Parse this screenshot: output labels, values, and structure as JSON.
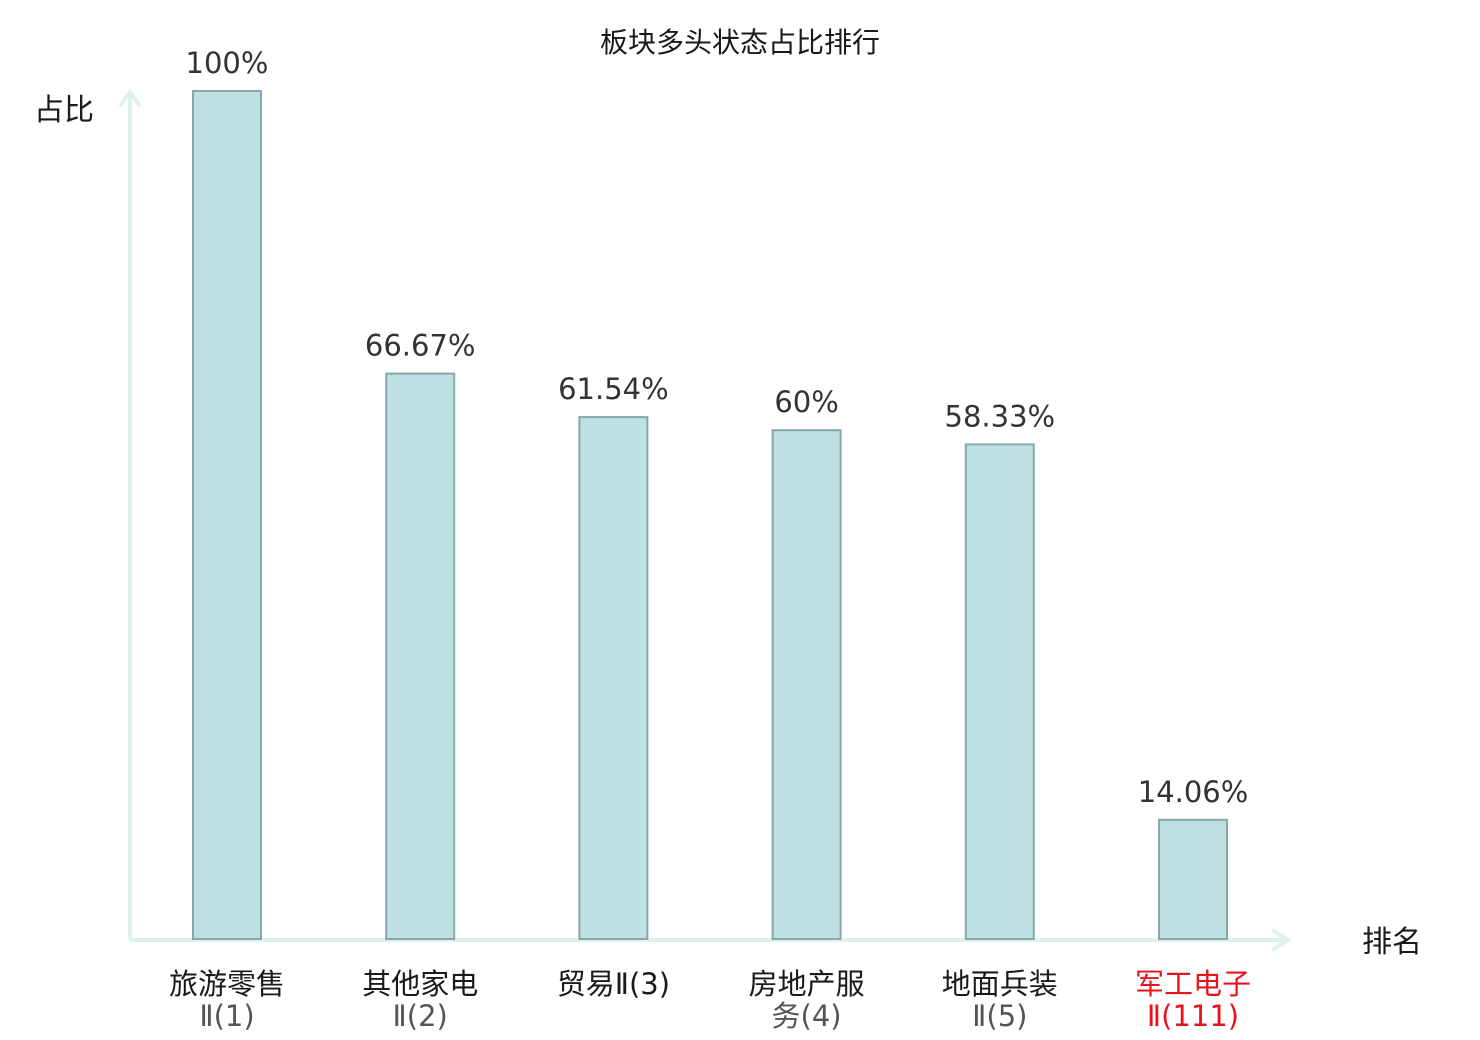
{
  "chart_data": {
    "type": "bar",
    "title": "板块多头状态占比排行",
    "ylabel": "占比",
    "xlabel": "排名",
    "ylim": [
      0,
      100
    ],
    "grid": false,
    "legend": "none",
    "categories": [
      {
        "line1": "旅游零售",
        "line2": "Ⅱ(1)",
        "highlight": false
      },
      {
        "line1": "其他家电",
        "line2": "Ⅱ(2)",
        "highlight": false
      },
      {
        "line1": "贸易Ⅱ(3)",
        "line2": "",
        "highlight": false
      },
      {
        "line1": "房地产服",
        "line2": "务(4)",
        "highlight": false
      },
      {
        "line1": "地面兵装",
        "line2": "Ⅱ(5)",
        "highlight": false
      },
      {
        "line1": "军工电子",
        "line2": "Ⅱ(111)",
        "highlight": true
      }
    ],
    "values": [
      100,
      66.67,
      61.54,
      60,
      58.33,
      14.06
    ],
    "value_labels": [
      "100%",
      "66.67%",
      "61.54%",
      "60%",
      "58.33%",
      "14.06%"
    ],
    "colors": {
      "bar_fill": "#bde0e3",
      "bar_stroke": "#86a8ac",
      "axis": "#dff1ef",
      "highlight_text": "#e8141b",
      "label_line1": "#1a1a1a",
      "label_line2": "#555555"
    }
  }
}
